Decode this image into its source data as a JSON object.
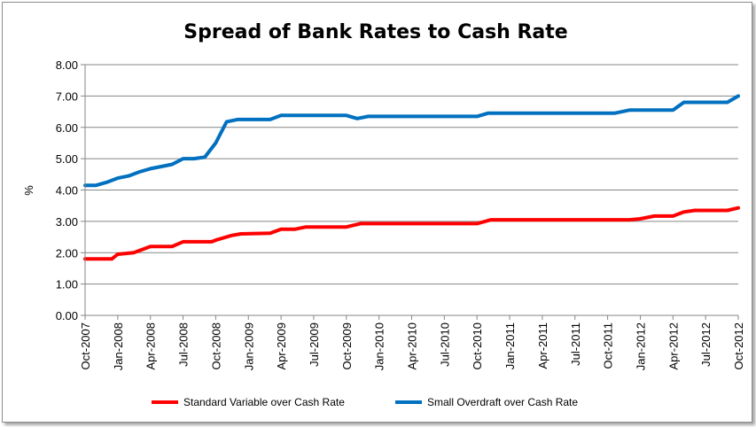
{
  "chart_data": {
    "type": "line",
    "title": "Spread of Bank Rates to Cash Rate",
    "xlabel": "",
    "ylabel": "%",
    "ylim": [
      0,
      8
    ],
    "yticks": [
      "0.00",
      "1.00",
      "2.00",
      "3.00",
      "4.00",
      "5.00",
      "6.00",
      "7.00",
      "8.00"
    ],
    "x_tick_labels": [
      "Oct-2007",
      "Jan-2008",
      "Apr-2008",
      "Jul-2008",
      "Oct-2008",
      "Jan-2009",
      "Apr-2009",
      "Jul-2009",
      "Oct-2009",
      "Jan-2010",
      "Apr-2010",
      "Jul-2010",
      "Oct-2010",
      "Jan-2011",
      "Apr-2011",
      "Jul-2011",
      "Oct-2011",
      "Jan-2012",
      "Apr-2012",
      "Jul-2012",
      "Oct-2012"
    ],
    "x_range": [
      "Oct-2007",
      "Oct-2012"
    ],
    "grid": true,
    "legend": "bottom",
    "series": [
      {
        "name": "Standard Variable over Cash Rate",
        "color": "#ff0000",
        "points": [
          [
            "2007-10-01",
            1.8
          ],
          [
            "2007-12-15",
            1.8
          ],
          [
            "2008-01-01",
            1.95
          ],
          [
            "2008-02-15",
            2.0
          ],
          [
            "2008-04-01",
            2.2
          ],
          [
            "2008-06-01",
            2.2
          ],
          [
            "2008-07-01",
            2.35
          ],
          [
            "2008-09-20",
            2.35
          ],
          [
            "2008-10-01",
            2.4
          ],
          [
            "2008-11-15",
            2.55
          ],
          [
            "2008-12-10",
            2.6
          ],
          [
            "2009-03-01",
            2.62
          ],
          [
            "2009-04-01",
            2.75
          ],
          [
            "2009-05-10",
            2.75
          ],
          [
            "2009-06-10",
            2.82
          ],
          [
            "2009-09-15",
            2.82
          ],
          [
            "2009-10-01",
            2.82
          ],
          [
            "2009-11-10",
            2.93
          ],
          [
            "2010-10-01",
            2.93
          ],
          [
            "2010-11-10",
            3.05
          ],
          [
            "2011-12-01",
            3.05
          ],
          [
            "2012-01-01",
            3.08
          ],
          [
            "2012-02-10",
            3.17
          ],
          [
            "2012-04-01",
            3.17
          ],
          [
            "2012-05-01",
            3.3
          ],
          [
            "2012-06-01",
            3.35
          ],
          [
            "2012-09-01",
            3.35
          ],
          [
            "2012-10-01",
            3.43
          ]
        ]
      },
      {
        "name": "Small Overdraft over Cash Rate",
        "color": "#0070c0",
        "points": [
          [
            "2007-10-01",
            4.15
          ],
          [
            "2007-11-01",
            4.15
          ],
          [
            "2007-12-01",
            4.25
          ],
          [
            "2008-01-01",
            4.38
          ],
          [
            "2008-02-01",
            4.45
          ],
          [
            "2008-03-01",
            4.58
          ],
          [
            "2008-04-01",
            4.68
          ],
          [
            "2008-05-01",
            4.75
          ],
          [
            "2008-06-01",
            4.82
          ],
          [
            "2008-07-01",
            5.0
          ],
          [
            "2008-08-01",
            5.0
          ],
          [
            "2008-09-01",
            5.05
          ],
          [
            "2008-10-01",
            5.5
          ],
          [
            "2008-11-01",
            6.18
          ],
          [
            "2008-12-01",
            6.25
          ],
          [
            "2009-03-01",
            6.25
          ],
          [
            "2009-04-01",
            6.38
          ],
          [
            "2009-10-01",
            6.38
          ],
          [
            "2009-11-01",
            6.28
          ],
          [
            "2009-12-01",
            6.35
          ],
          [
            "2010-10-01",
            6.35
          ],
          [
            "2010-11-01",
            6.45
          ],
          [
            "2011-10-20",
            6.45
          ],
          [
            "2011-12-01",
            6.55
          ],
          [
            "2012-04-01",
            6.55
          ],
          [
            "2012-05-01",
            6.8
          ],
          [
            "2012-09-01",
            6.8
          ],
          [
            "2012-10-01",
            7.0
          ]
        ]
      }
    ]
  }
}
